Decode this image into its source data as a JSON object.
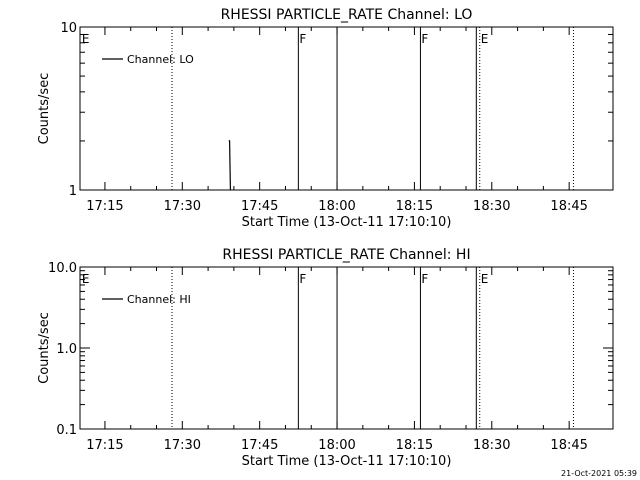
{
  "chart_data": [
    {
      "type": "line",
      "title": "RHESSI PARTICLE_RATE Channel: LO",
      "xlabel": "Start Time (13-Oct-11 17:10:10)",
      "ylabel": "Counts/sec",
      "y_scale": "log",
      "ylim": [
        1,
        10
      ],
      "y_ticks": [
        {
          "value": 1,
          "label": "1"
        },
        {
          "value": 10,
          "label": "10"
        }
      ],
      "xlim": [
        "17:10:10",
        "18:53:30"
      ],
      "x_ticks": [
        "17:15",
        "17:30",
        "17:45",
        "18:00",
        "18:15",
        "18:30",
        "18:45"
      ],
      "legend": {
        "placement": "top-left",
        "entries": [
          "Channel: LO"
        ]
      },
      "series": [
        {
          "name": "Channel: LO",
          "x": [
            "17:39:00",
            "17:39:10",
            "17:39:20"
          ],
          "y": [
            2.0,
            2.0,
            1.0
          ]
        }
      ],
      "event_markers": [
        {
          "time": "17:10:20",
          "label": "E",
          "style": "text"
        },
        {
          "time": "17:28:00",
          "label": "",
          "style": "dotted"
        },
        {
          "time": "17:52:30",
          "label": "F",
          "style": "solid"
        },
        {
          "time": "18:00:00",
          "label": "",
          "style": "solid"
        },
        {
          "time": "18:16:10",
          "label": "F",
          "style": "solid"
        },
        {
          "time": "18:27:00",
          "label": "",
          "style": "solid"
        },
        {
          "time": "18:27:40",
          "label": "E",
          "style": "dotted"
        },
        {
          "time": "18:45:50",
          "label": "",
          "style": "dotted"
        }
      ]
    },
    {
      "type": "line",
      "title": "RHESSI PARTICLE_RATE Channel: HI",
      "xlabel": "Start Time (13-Oct-11 17:10:10)",
      "ylabel": "Counts/sec",
      "y_scale": "log",
      "ylim": [
        0.1,
        10
      ],
      "y_ticks": [
        {
          "value": 0.1,
          "label": "0.1"
        },
        {
          "value": 1,
          "label": "1.0"
        },
        {
          "value": 10,
          "label": "10.0"
        }
      ],
      "xlim": [
        "17:10:10",
        "18:53:30"
      ],
      "x_ticks": [
        "17:15",
        "17:30",
        "17:45",
        "18:00",
        "18:15",
        "18:30",
        "18:45"
      ],
      "legend": {
        "placement": "top-left",
        "entries": [
          "Channel: HI"
        ]
      },
      "series": [
        {
          "name": "Channel: HI",
          "x": [],
          "y": []
        }
      ],
      "event_markers": [
        {
          "time": "17:10:20",
          "label": "E",
          "style": "text"
        },
        {
          "time": "17:28:00",
          "label": "",
          "style": "dotted"
        },
        {
          "time": "17:52:30",
          "label": "F",
          "style": "solid"
        },
        {
          "time": "18:00:00",
          "label": "",
          "style": "solid"
        },
        {
          "time": "18:16:10",
          "label": "F",
          "style": "solid"
        },
        {
          "time": "18:27:00",
          "label": "",
          "style": "solid"
        },
        {
          "time": "18:27:40",
          "label": "E",
          "style": "dotted"
        },
        {
          "time": "18:45:50",
          "label": "",
          "style": "dotted"
        }
      ]
    }
  ],
  "footer": {
    "timestamp": "21-Oct-2021 05:39"
  },
  "colors": {
    "background": "#ffffff",
    "foreground": "#000000"
  }
}
